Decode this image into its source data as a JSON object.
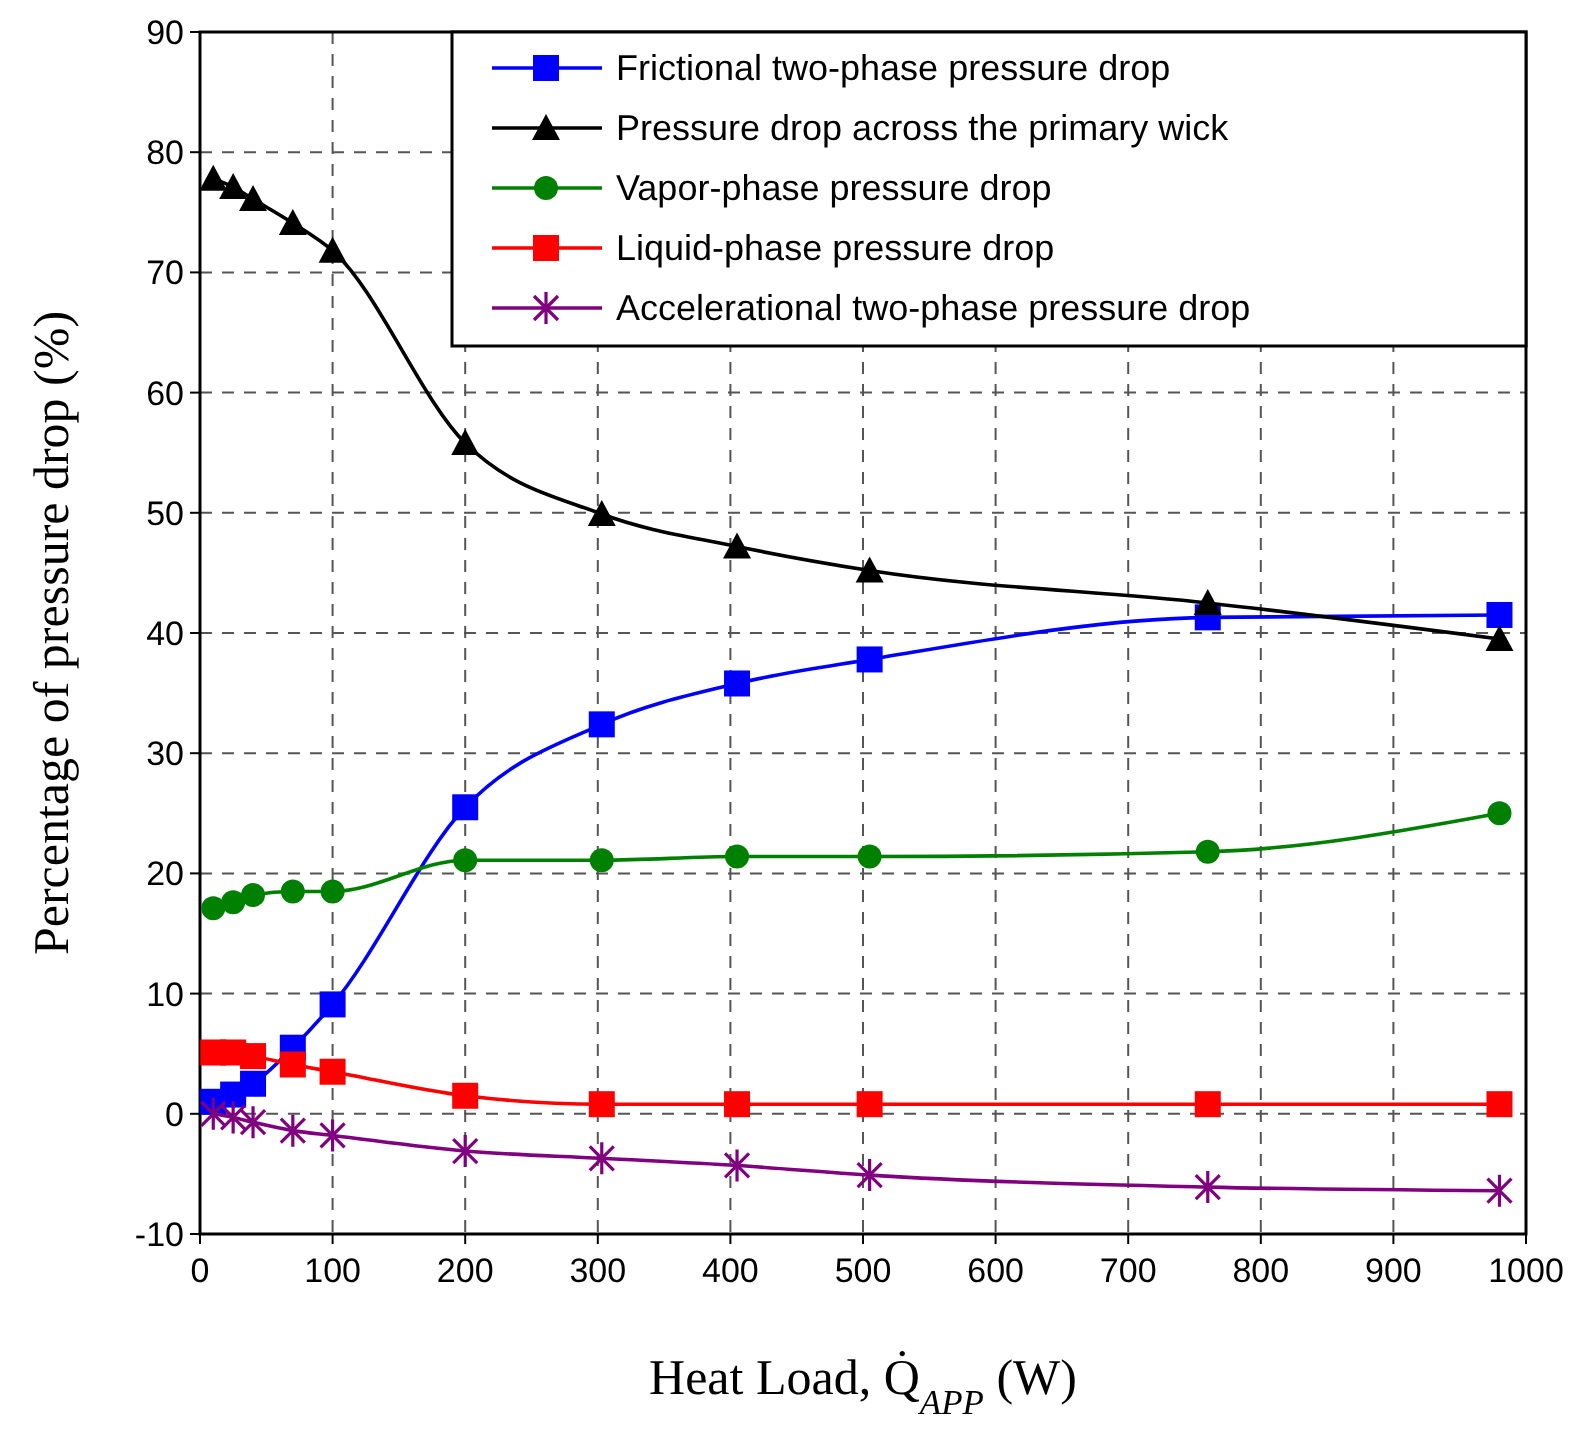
{
  "chart_data": {
    "type": "line",
    "xlabel": "Heat Load, Q̇$_{APP}$ (W)",
    "ylabel": "Percentage of pressure drop (%)",
    "x": [
      10,
      25,
      40,
      70,
      100,
      200,
      303,
      405,
      505,
      760,
      980
    ],
    "xlim": [
      0,
      1000
    ],
    "xticks": [
      0,
      100,
      200,
      300,
      400,
      500,
      600,
      700,
      800,
      900,
      1000
    ],
    "ylim": [
      -10,
      90
    ],
    "yticks": [
      -10,
      0,
      10,
      20,
      30,
      40,
      50,
      60,
      70,
      80,
      90
    ],
    "grid": true,
    "legend": "top right",
    "series": [
      {
        "name": "Frictional two-phase pressure drop",
        "color": "#0000ff",
        "marker": "square",
        "values": [
          1.0,
          1.6,
          2.5,
          5.5,
          9.1,
          25.5,
          32.4,
          35.8,
          37.8,
          41.3,
          41.5
        ]
      },
      {
        "name": "Pressure drop across the primary wick",
        "color": "#000000",
        "marker": "triangle",
        "values": [
          77.8,
          77.1,
          76.1,
          74.1,
          71.8,
          55.8,
          49.9,
          47.2,
          45.2,
          42.5,
          39.5
        ]
      },
      {
        "name": "Vapor-phase pressure drop",
        "color": "#008000",
        "marker": "circle",
        "values": [
          17.1,
          17.6,
          18.2,
          18.5,
          18.5,
          21.1,
          21.1,
          21.4,
          21.4,
          21.8,
          25.0
        ]
      },
      {
        "name": "Liquid-phase pressure drop",
        "color": "#ff0000",
        "marker": "square",
        "values": [
          5.1,
          5.1,
          4.8,
          4.1,
          3.5,
          1.5,
          0.8,
          0.8,
          0.8,
          0.8,
          0.8
        ]
      },
      {
        "name": "Accelerational two-phase pressure drop",
        "color": "#800080",
        "marker": "cross",
        "values": [
          0,
          -0.3,
          -0.7,
          -1.4,
          -1.8,
          -3.1,
          -3.7,
          -4.3,
          -5.1,
          -6.1,
          -6.4
        ]
      }
    ]
  }
}
